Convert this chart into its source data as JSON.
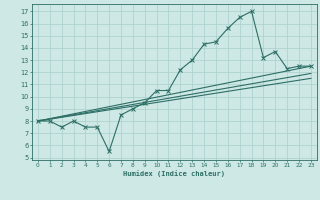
{
  "bg_color": "#cde8e5",
  "grid_color": "#aacfcc",
  "line_color": "#2d6e65",
  "xlabel": "Humidex (Indice chaleur)",
  "xlim": [
    -0.5,
    23.5
  ],
  "ylim": [
    4.8,
    17.6
  ],
  "yticks": [
    5,
    6,
    7,
    8,
    9,
    10,
    11,
    12,
    13,
    14,
    15,
    16,
    17
  ],
  "xticks": [
    0,
    1,
    2,
    3,
    4,
    5,
    6,
    7,
    8,
    9,
    10,
    11,
    12,
    13,
    14,
    15,
    16,
    17,
    18,
    19,
    20,
    21,
    22,
    23
  ],
  "series1_x": [
    0,
    1,
    2,
    3,
    4,
    5,
    6,
    7,
    8,
    9,
    10,
    11,
    12,
    13,
    14,
    15,
    16,
    17,
    18,
    19,
    20,
    21,
    22,
    23
  ],
  "series1_y": [
    8.0,
    8.0,
    7.5,
    8.0,
    7.5,
    7.5,
    5.5,
    8.5,
    9.0,
    9.5,
    10.5,
    10.5,
    12.2,
    13.0,
    14.3,
    14.5,
    15.6,
    16.5,
    17.0,
    13.2,
    13.7,
    12.3,
    12.5,
    12.5
  ],
  "series2_x": [
    0,
    23
  ],
  "series2_y": [
    8.0,
    12.5
  ],
  "series3_x": [
    0,
    23
  ],
  "series3_y": [
    8.0,
    11.5
  ],
  "series4_x": [
    0,
    23
  ],
  "series4_y": [
    8.0,
    11.9
  ]
}
